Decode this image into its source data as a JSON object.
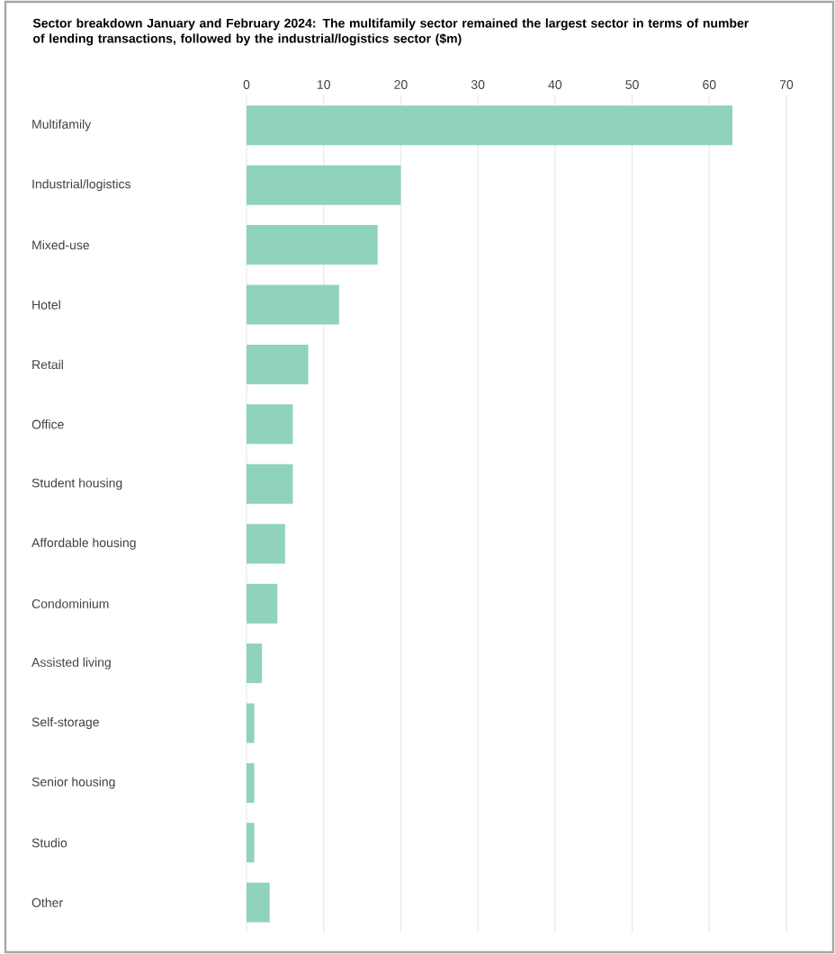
{
  "chart_data": {
    "type": "bar",
    "orientation": "horizontal",
    "title": "Sector breakdown January and February 2024: The multifamily sector remained the largest sector in terms of number of lending transactions, followed by the industrial/logistics sector ($m)",
    "categories": [
      "Multifamily",
      "Industrial/logistics",
      "Mixed-use",
      "Hotel",
      "Retail",
      "Office",
      "Student housing",
      "Affordable housing",
      "Condominium",
      "Assisted living",
      "Self-storage",
      "Senior housing",
      "Studio",
      "Other"
    ],
    "values": [
      63,
      20,
      17,
      12,
      8,
      6,
      6,
      5,
      4,
      2,
      1,
      1,
      1,
      3
    ],
    "color": "#8fd3bf",
    "xlim": [
      0,
      70
    ],
    "xticks": [
      0,
      10,
      20,
      30,
      40,
      50,
      60,
      70
    ],
    "grid": "x"
  }
}
